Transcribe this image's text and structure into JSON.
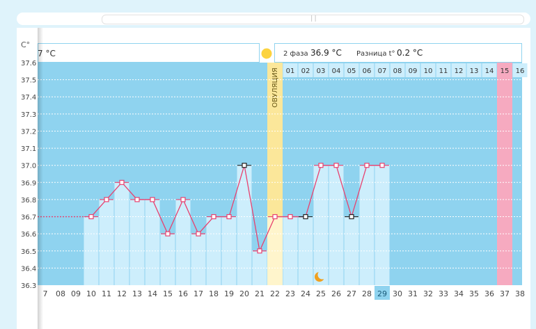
{
  "scroll": {
    "grip": "||"
  },
  "yaxis": {
    "unit": "C°"
  },
  "header": {
    "phase1_fragment": "7 °C",
    "phase2_label": "2 фаза",
    "phase2_value": "36.9 °C",
    "diff_label": "Разница t°",
    "diff_value": "0.2 °C"
  },
  "ovulation_label": "ОВУЛЯЦИЯ",
  "colors": {
    "chart_bg": "#8fd3ef",
    "bar_fill": "#cdeefc",
    "line": "#e8416f",
    "ovulation_band": "#fbe79a",
    "highlight_day": "#f6aac0",
    "current_day": "#8fd3ef"
  },
  "chart_data": {
    "type": "line",
    "y_unit": "C°",
    "ylim": [
      36.3,
      37.6
    ],
    "yticks": [
      "36.3",
      "36.4",
      "36.5",
      "36.6",
      "36.7",
      "36.8",
      "36.9",
      "37.0",
      "37.1",
      "37.2",
      "37.3",
      "37.4",
      "37.5",
      "37.6"
    ],
    "grid": true,
    "cycle_days": [
      "7",
      "08",
      "09",
      "10",
      "11",
      "12",
      "13",
      "14",
      "15",
      "16",
      "17",
      "18",
      "19",
      "20",
      "21",
      "22",
      "23",
      "24",
      "25",
      "26",
      "27",
      "28",
      "29",
      "30",
      "31",
      "32",
      "33",
      "34",
      "35",
      "36",
      "37",
      "38"
    ],
    "phase2_days": [
      "01",
      "02",
      "03",
      "04",
      "05",
      "06",
      "07",
      "08",
      "09",
      "10",
      "11",
      "12",
      "13",
      "14",
      "15",
      "16"
    ],
    "temperatures": [
      null,
      null,
      null,
      36.7,
      36.8,
      36.9,
      36.8,
      36.8,
      36.6,
      36.8,
      36.6,
      36.7,
      36.7,
      37.0,
      36.5,
      36.7,
      36.7,
      36.7,
      37.0,
      37.0,
      36.7,
      37.0,
      37.0,
      null,
      null,
      null,
      null,
      null,
      null,
      null,
      null,
      null
    ],
    "dashed_baseline_value": 36.7,
    "ovulation_day": "22",
    "current_day": "29",
    "highlight_day": "37",
    "marked_days": [
      "20",
      "24",
      "27"
    ],
    "moon_day": "25"
  }
}
